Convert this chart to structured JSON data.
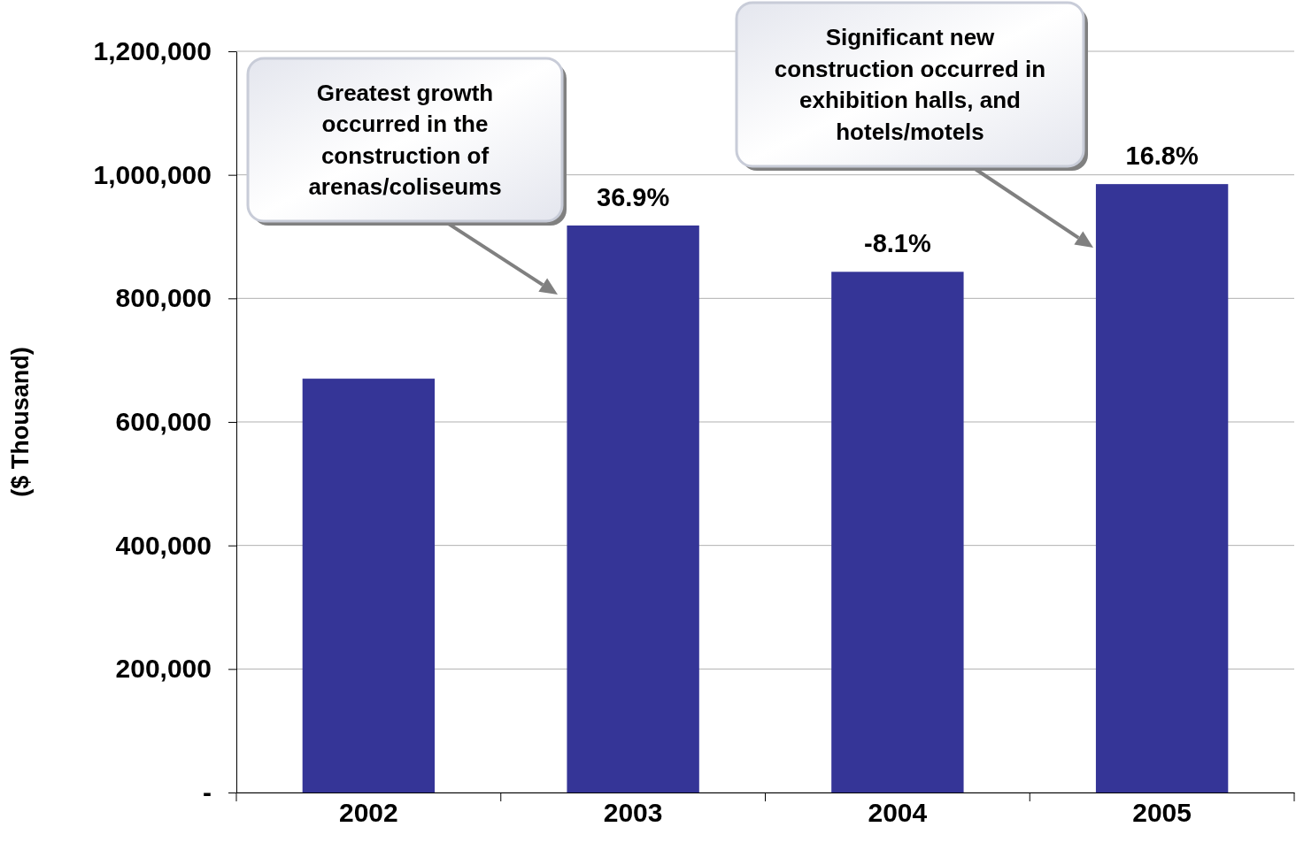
{
  "chart_data": {
    "type": "bar",
    "ylabel": "($ Thousand)",
    "categories": [
      "2002",
      "2003",
      "2004",
      "2005"
    ],
    "values": [
      670000,
      918000,
      843000,
      985000
    ],
    "color": "#353597",
    "ylim": [
      0,
      1200000
    ],
    "yticks": [
      {
        "value": 0,
        "label": "-"
      },
      {
        "value": 200000,
        "label": "200,000"
      },
      {
        "value": 400000,
        "label": "400,000"
      },
      {
        "value": 600000,
        "label": "600,000"
      },
      {
        "value": 800000,
        "label": "800,000"
      },
      {
        "value": 1000000,
        "label": "1,000,000"
      },
      {
        "value": 1200000,
        "label": "1,200,000"
      }
    ],
    "grid": "y",
    "annotations": [
      "Greatest growth occurred in the construction of arenas/coliseums",
      "Significant new construction occurred in exhibition halls, and hotels/motels",
      {
        "text": "36.9%",
        "x": "2003",
        "y": 918000
      },
      {
        "text": "-8.1%",
        "x": "2004",
        "y": 843000
      },
      {
        "text": "16.8%",
        "x": "2005",
        "y": 985000
      }
    ]
  }
}
